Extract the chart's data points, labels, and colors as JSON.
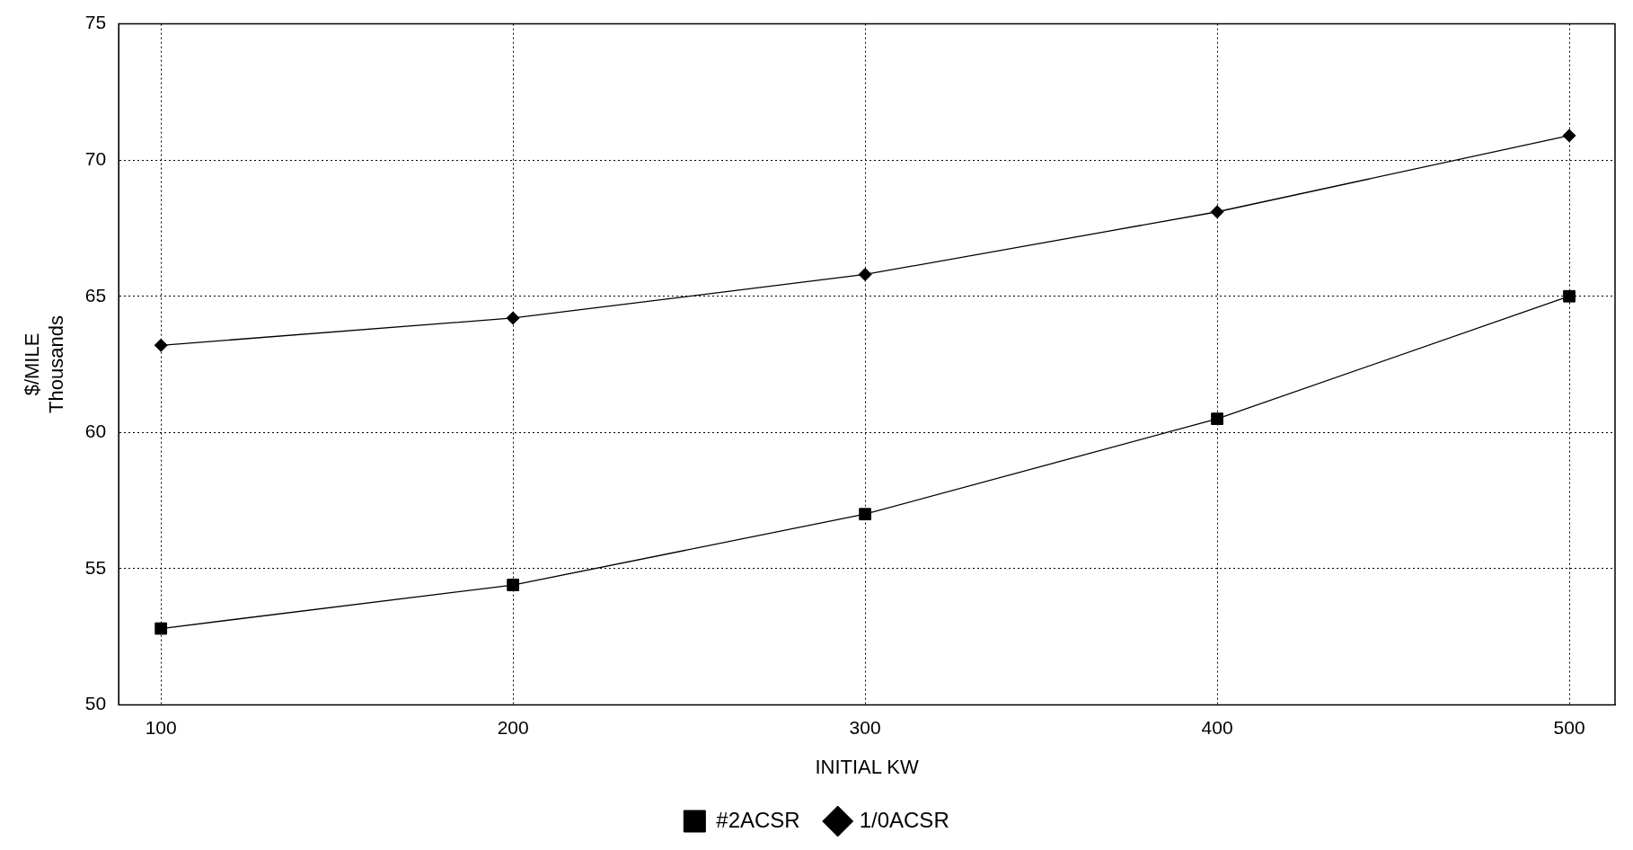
{
  "chart_data": {
    "type": "line",
    "xlabel": "INITIAL KW",
    "ylabel": "$/MILE\nThousands",
    "x": [
      100,
      200,
      300,
      400,
      500
    ],
    "series": [
      {
        "name": "#2ACSR",
        "color": "#000000",
        "marker": "square",
        "values": [
          52.8,
          54.4,
          57.0,
          60.5,
          65.0
        ]
      },
      {
        "name": "1/0ACSR",
        "color": "#000000",
        "marker": "diamond",
        "values": [
          63.2,
          64.2,
          65.8,
          68.1,
          70.9
        ]
      }
    ],
    "xlim": [
      88,
      513
    ],
    "xticks": [
      100,
      200,
      300,
      400,
      500
    ],
    "ylim": [
      50,
      75
    ],
    "yticks": [
      50,
      55,
      60,
      65,
      70,
      75
    ],
    "grid": true,
    "legend": "bottom",
    "line_style": "solid"
  }
}
